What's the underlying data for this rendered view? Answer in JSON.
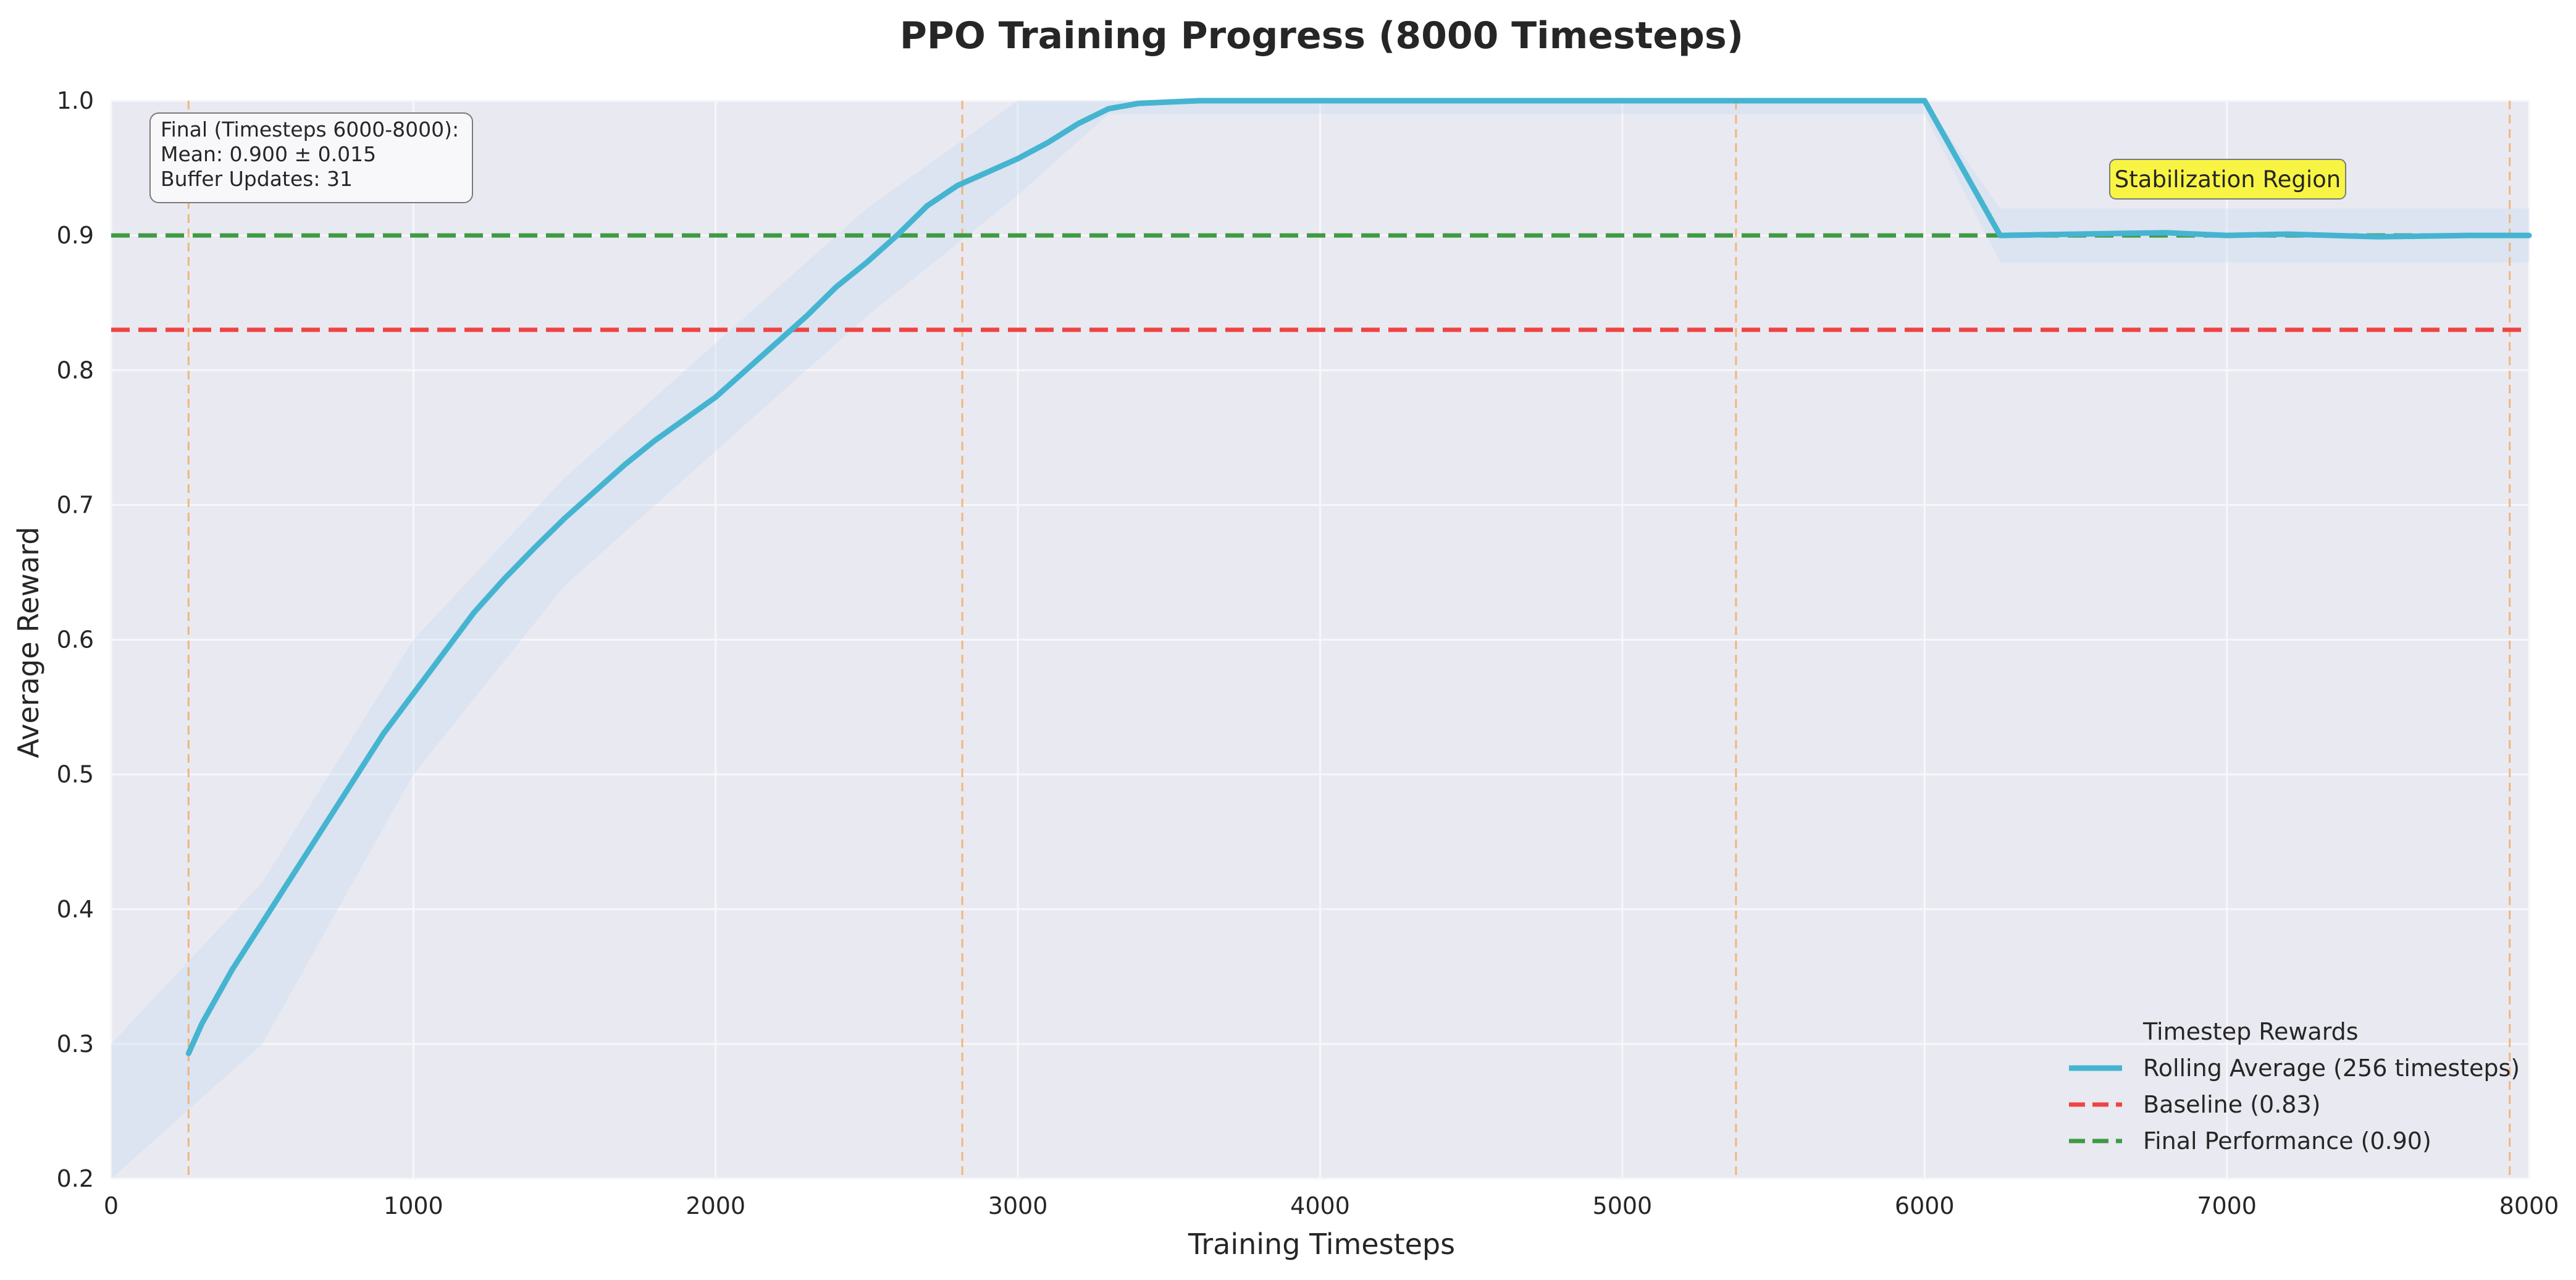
{
  "colors": {
    "plot_bg": "#e9e9f1",
    "grid": "#f7f7fb",
    "rolling": "#45b4d1",
    "raw": "#c4dced",
    "baseline": "#ef4444",
    "final": "#3f9a43",
    "milestone": "#f5a95e",
    "highlight_bg": "#f8f443",
    "text": "#262626"
  },
  "chart_data": {
    "type": "line",
    "title": "PPO Training Progress (8000 Timesteps)",
    "xlabel": "Training Timesteps",
    "ylabel": "Average Reward",
    "xlim": [
      0,
      8000
    ],
    "ylim": [
      0.2,
      1.0
    ],
    "x_ticks": [
      0,
      1000,
      2000,
      3000,
      4000,
      5000,
      6000,
      7000,
      8000
    ],
    "y_ticks": [
      0.2,
      0.3,
      0.4,
      0.5,
      0.6,
      0.7,
      0.8,
      0.9,
      1.0
    ],
    "x_tick_labels": [
      "0",
      "1000",
      "2000",
      "3000",
      "4000",
      "5000",
      "6000",
      "7000",
      "8000"
    ],
    "y_tick_labels": [
      "0.2",
      "0.3",
      "0.4",
      "0.5",
      "0.6",
      "0.7",
      "0.8",
      "0.9",
      "1.0"
    ],
    "grid": true,
    "series": [
      {
        "name": "Rolling Average (256 timesteps)",
        "style": "solid",
        "x": [
          256,
          300,
          400,
          500,
          600,
          700,
          800,
          900,
          1000,
          1100,
          1200,
          1300,
          1400,
          1500,
          1600,
          1700,
          1800,
          1900,
          2000,
          2100,
          2200,
          2300,
          2400,
          2500,
          2600,
          2700,
          2800,
          2900,
          3000,
          3100,
          3200,
          3300,
          3400,
          3500,
          3600,
          3700,
          4000,
          5000,
          6000,
          6250,
          6500,
          6800,
          7000,
          7200,
          7500,
          7800,
          8000
        ],
        "y": [
          0.293,
          0.315,
          0.355,
          0.39,
          0.425,
          0.46,
          0.495,
          0.53,
          0.56,
          0.59,
          0.62,
          0.645,
          0.668,
          0.69,
          0.71,
          0.73,
          0.748,
          0.764,
          0.78,
          0.8,
          0.82,
          0.84,
          0.862,
          0.88,
          0.9,
          0.922,
          0.937,
          0.947,
          0.957,
          0.969,
          0.983,
          0.994,
          0.998,
          0.999,
          1.0,
          1.0,
          1.0,
          1.0,
          1.0,
          0.9,
          0.901,
          0.902,
          0.9,
          0.901,
          0.899,
          0.9,
          0.9
        ]
      },
      {
        "name": "Baseline (0.83)",
        "style": "dashed",
        "x": [
          0,
          8000
        ],
        "y": [
          0.83,
          0.83
        ]
      },
      {
        "name": "Final Performance (0.90)",
        "style": "dashed",
        "x": [
          0,
          8000
        ],
        "y": [
          0.9,
          0.9
        ]
      }
    ],
    "raw_band": {
      "x": [
        0,
        500,
        1000,
        1500,
        2000,
        2500,
        3000,
        3300,
        6000,
        6250,
        8000
      ],
      "low": [
        0.2,
        0.3,
        0.5,
        0.64,
        0.74,
        0.84,
        0.93,
        0.99,
        0.99,
        0.88,
        0.88
      ],
      "high": [
        0.3,
        0.42,
        0.6,
        0.72,
        0.82,
        0.92,
        1.0,
        1.0,
        1.0,
        0.92,
        0.92
      ]
    },
    "milestones_x": [
      256,
      2816,
      5376,
      7936
    ],
    "legend": {
      "placement": "lower right",
      "title": "Timestep Rewards",
      "entries": [
        "Rolling Average (256 timesteps)",
        "Baseline (0.83)",
        "Final Performance (0.90)"
      ]
    },
    "stats_box": {
      "line1": "Final (Timesteps 6000-8000):",
      "line2": "Mean: 0.900 ± 0.015",
      "line3": "Buffer Updates: 31"
    },
    "annotation": {
      "text": "Stabilization Region",
      "x": 7000,
      "y": 0.943
    }
  }
}
